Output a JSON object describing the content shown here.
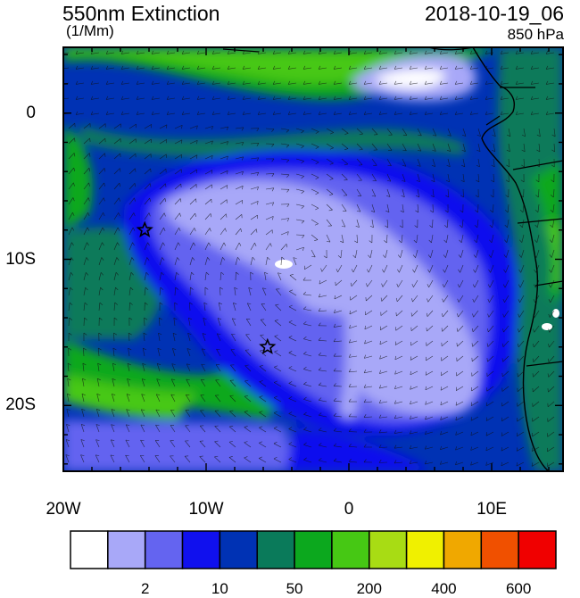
{
  "header": {
    "title": "550nm Extinction",
    "units": "(1/Mm)",
    "datetime": "2018-10-19_06",
    "level": "850 hPa"
  },
  "map": {
    "lon_range": [
      -20,
      15
    ],
    "lat_range": [
      -24.5,
      4.5
    ],
    "x_tick_labels": [
      "20W",
      "10W",
      "0",
      "10E"
    ],
    "x_tick_values": [
      -20,
      -10,
      0,
      10
    ],
    "y_tick_labels": [
      "0",
      "10S",
      "20S"
    ],
    "y_tick_values": [
      0,
      -10,
      -20
    ],
    "markers": [
      {
        "symbol": "star",
        "lon": -14.3,
        "lat": -8.0
      },
      {
        "symbol": "star",
        "lon": -5.7,
        "lat": -16.0
      }
    ]
  },
  "colorbar": {
    "colors": [
      "#ffffff",
      "#a8a8f8",
      "#6464f0",
      "#1010ee",
      "#0032b4",
      "#0a7a5a",
      "#0ca81e",
      "#46c814",
      "#a8dc14",
      "#f0f000",
      "#f0a800",
      "#f05000",
      "#f00000"
    ],
    "labels": [
      {
        "text": "2",
        "boundary": 2
      },
      {
        "text": "10",
        "boundary": 4
      },
      {
        "text": "50",
        "boundary": 6
      },
      {
        "text": "200",
        "boundary": 8
      },
      {
        "text": "400",
        "boundary": 10
      },
      {
        "text": "600",
        "boundary": 12
      }
    ]
  }
}
